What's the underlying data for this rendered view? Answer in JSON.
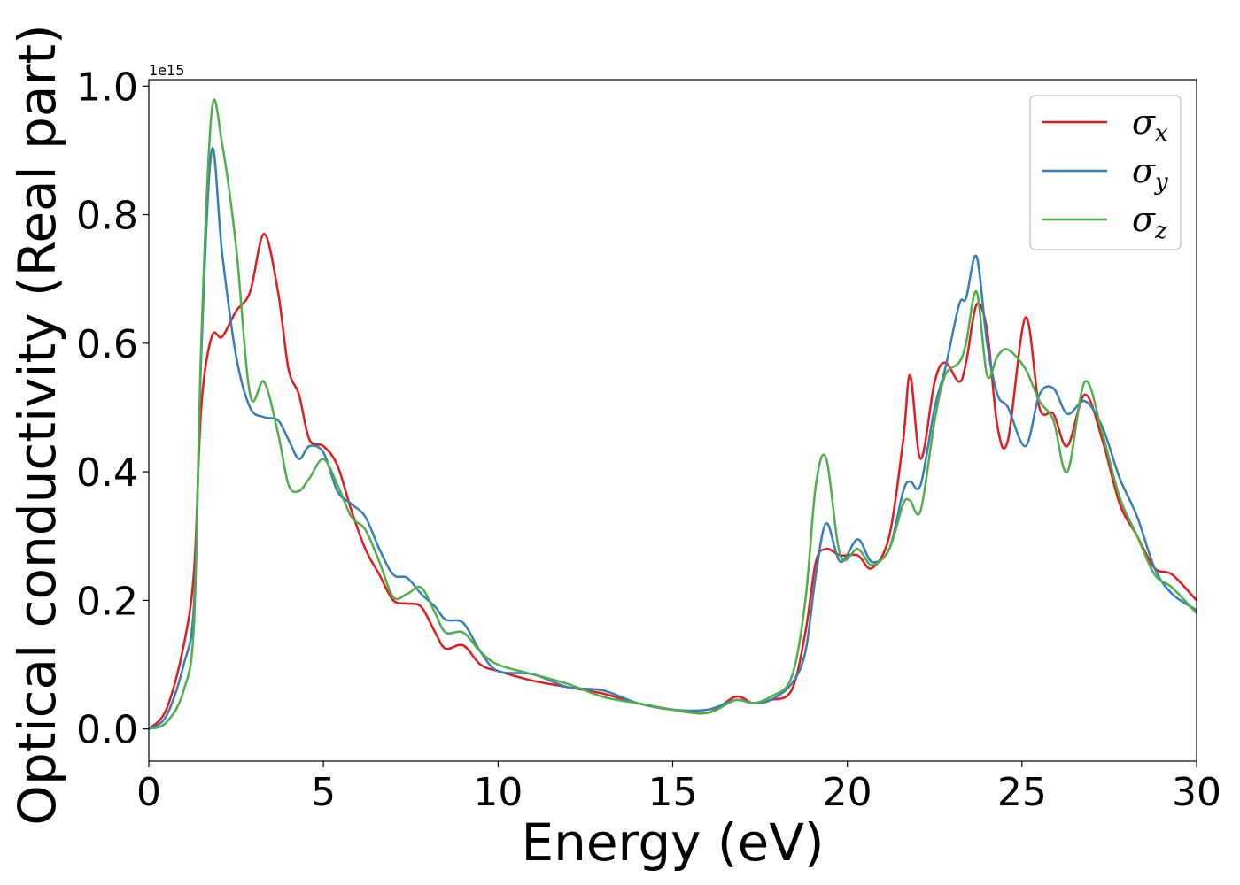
{
  "chart_data": {
    "type": "line",
    "xlabel": "Energy (eV)",
    "ylabel": "Optical conductivity (Real part)",
    "y_offset_label": "1e15",
    "xlim": [
      0,
      30
    ],
    "ylim": [
      -0.05,
      1.01
    ],
    "xticks": [
      0,
      5,
      10,
      15,
      20,
      25,
      30
    ],
    "xtick_labels": [
      "0",
      "5",
      "10",
      "15",
      "20",
      "25",
      "30"
    ],
    "yticks": [
      0.0,
      0.2,
      0.4,
      0.6,
      0.8,
      1.0
    ],
    "ytick_labels": [
      "0.0",
      "0.2",
      "0.4",
      "0.6",
      "0.8",
      "1.0"
    ],
    "grid": false,
    "legend_position": "top-right",
    "series": [
      {
        "name": "σx",
        "symbol": "σ",
        "subscript": "x",
        "color": "#e41a1c",
        "x": [
          0,
          0.5,
          1.0,
          1.3,
          1.5,
          1.8,
          2.1,
          2.5,
          2.9,
          3.3,
          3.7,
          4.0,
          4.3,
          4.6,
          5.0,
          5.4,
          5.8,
          6.2,
          6.6,
          7.0,
          7.4,
          7.8,
          8.2,
          8.5,
          9.0,
          9.5,
          10,
          11,
          12,
          13,
          14,
          15,
          16,
          16.8,
          17.3,
          17.8,
          18.4,
          18.8,
          19.1,
          19.4,
          19.8,
          20.3,
          20.7,
          21.2,
          21.6,
          21.8,
          22.1,
          22.5,
          22.8,
          23.2,
          23.4,
          23.7,
          24.0,
          24.3,
          24.6,
          25.1,
          25.5,
          25.9,
          26.3,
          26.8,
          27.3,
          27.8,
          28.3,
          28.8,
          29.3,
          30
        ],
        "y": [
          0.0,
          0.03,
          0.13,
          0.25,
          0.5,
          0.61,
          0.61,
          0.65,
          0.68,
          0.77,
          0.68,
          0.56,
          0.52,
          0.45,
          0.44,
          0.41,
          0.34,
          0.28,
          0.24,
          0.2,
          0.195,
          0.19,
          0.15,
          0.125,
          0.13,
          0.1,
          0.09,
          0.075,
          0.065,
          0.055,
          0.04,
          0.03,
          0.025,
          0.05,
          0.04,
          0.045,
          0.06,
          0.15,
          0.26,
          0.28,
          0.27,
          0.27,
          0.25,
          0.3,
          0.45,
          0.55,
          0.42,
          0.54,
          0.57,
          0.54,
          0.57,
          0.66,
          0.62,
          0.47,
          0.45,
          0.64,
          0.5,
          0.49,
          0.44,
          0.52,
          0.45,
          0.35,
          0.3,
          0.25,
          0.24,
          0.2
        ]
      },
      {
        "name": "σy",
        "symbol": "σ",
        "subscript": "y",
        "color": "#377eb8",
        "x": [
          0,
          0.5,
          1.0,
          1.3,
          1.5,
          1.8,
          2.1,
          2.5,
          2.9,
          3.3,
          3.7,
          4.0,
          4.3,
          4.6,
          5.0,
          5.4,
          5.8,
          6.2,
          6.6,
          7.0,
          7.4,
          7.8,
          8.2,
          8.5,
          9.0,
          9.5,
          10,
          11,
          12,
          13,
          14,
          15,
          16,
          16.8,
          17.3,
          17.8,
          18.4,
          18.8,
          19.1,
          19.4,
          19.8,
          20.3,
          20.7,
          21.2,
          21.6,
          21.8,
          22.1,
          22.5,
          22.8,
          23.2,
          23.4,
          23.7,
          24.0,
          24.3,
          24.6,
          25.1,
          25.5,
          25.9,
          26.3,
          26.8,
          27.3,
          27.8,
          28.3,
          28.8,
          29.3,
          30
        ],
        "y": [
          0.0,
          0.02,
          0.1,
          0.2,
          0.58,
          0.9,
          0.74,
          0.58,
          0.5,
          0.485,
          0.48,
          0.45,
          0.42,
          0.44,
          0.43,
          0.37,
          0.35,
          0.33,
          0.28,
          0.24,
          0.235,
          0.21,
          0.19,
          0.17,
          0.165,
          0.12,
          0.09,
          0.085,
          0.065,
          0.06,
          0.04,
          0.03,
          0.03,
          0.045,
          0.04,
          0.045,
          0.07,
          0.12,
          0.24,
          0.32,
          0.26,
          0.295,
          0.26,
          0.28,
          0.37,
          0.385,
          0.38,
          0.5,
          0.56,
          0.66,
          0.67,
          0.735,
          0.6,
          0.52,
          0.5,
          0.44,
          0.52,
          0.53,
          0.49,
          0.51,
          0.47,
          0.39,
          0.33,
          0.25,
          0.21,
          0.185
        ]
      },
      {
        "name": "σz",
        "symbol": "σ",
        "subscript": "z",
        "color": "#4daf4a",
        "x": [
          0,
          0.5,
          1.0,
          1.3,
          1.5,
          1.8,
          2.1,
          2.5,
          2.9,
          3.3,
          3.7,
          4.0,
          4.3,
          4.6,
          5.0,
          5.4,
          5.8,
          6.2,
          6.6,
          7.0,
          7.4,
          7.8,
          8.2,
          8.5,
          9.0,
          9.5,
          10,
          11,
          12,
          13,
          14,
          15,
          16,
          16.8,
          17.3,
          17.8,
          18.4,
          18.8,
          19.1,
          19.4,
          19.8,
          20.3,
          20.7,
          21.2,
          21.6,
          21.8,
          22.1,
          22.5,
          22.8,
          23.2,
          23.4,
          23.7,
          24.0,
          24.3,
          24.6,
          25.1,
          25.5,
          25.9,
          26.3,
          26.8,
          27.3,
          27.8,
          28.3,
          28.8,
          29.3,
          30
        ],
        "y": [
          0.0,
          0.01,
          0.06,
          0.17,
          0.6,
          0.96,
          0.91,
          0.75,
          0.52,
          0.54,
          0.46,
          0.38,
          0.37,
          0.39,
          0.42,
          0.38,
          0.33,
          0.31,
          0.26,
          0.205,
          0.21,
          0.22,
          0.18,
          0.15,
          0.15,
          0.12,
          0.1,
          0.085,
          0.07,
          0.05,
          0.04,
          0.03,
          0.025,
          0.045,
          0.04,
          0.05,
          0.08,
          0.2,
          0.38,
          0.42,
          0.27,
          0.28,
          0.255,
          0.28,
          0.35,
          0.355,
          0.34,
          0.48,
          0.55,
          0.57,
          0.6,
          0.68,
          0.55,
          0.58,
          0.59,
          0.56,
          0.51,
          0.48,
          0.4,
          0.54,
          0.46,
          0.36,
          0.3,
          0.24,
          0.22,
          0.18
        ]
      }
    ]
  }
}
